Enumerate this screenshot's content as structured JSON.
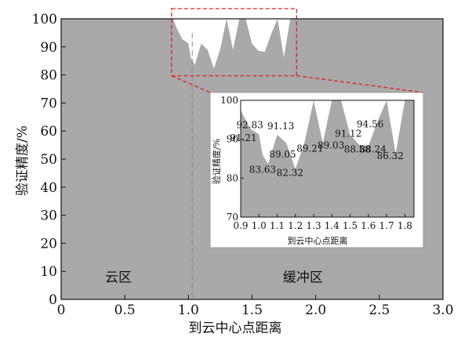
{
  "chart_data": [
    {
      "type": "area",
      "xlabel": "到云中心点距离",
      "ylabel": "验证精度/%",
      "xlim": [
        0,
        3.0
      ],
      "ylim": [
        0,
        100
      ],
      "xticks": [
        "0",
        "0.5",
        "1.0",
        "1.5",
        "2.0",
        "2.5",
        "3.0"
      ],
      "yticks": [
        "0",
        "10",
        "20",
        "30",
        "40",
        "50",
        "60",
        "70",
        "80",
        "90",
        "100"
      ],
      "boundary_x": 1.03,
      "regions": [
        {
          "label": "云区",
          "x": 0.45,
          "y": 8
        },
        {
          "label": "缓冲区",
          "x": 1.9,
          "y": 8
        }
      ],
      "zoom_window": {
        "x": [
          0.88,
          1.85
        ],
        "y": [
          80,
          100
        ]
      },
      "series": [
        {
          "values_x": [
            0.0,
            0.88,
            0.9,
            0.95,
            1.0,
            1.02,
            1.05,
            1.1,
            1.15,
            1.2,
            1.25,
            1.3,
            1.35,
            1.4,
            1.45,
            1.5,
            1.55,
            1.6,
            1.65,
            1.7,
            1.75,
            1.8,
            1.85,
            3.0
          ],
          "values_y": [
            100,
            100,
            97.5,
            92.83,
            91.21,
            86,
            83.63,
            91.13,
            89.05,
            82.32,
            89.21,
            100,
            89.03,
            100,
            100,
            91.12,
            88.58,
            88.24,
            94.56,
            100,
            86.32,
            100,
            100,
            100
          ]
        }
      ]
    },
    {
      "type": "area",
      "xlabel": "到云中心点距离",
      "ylabel": "验证精度/%",
      "xlim": [
        0.9,
        1.85
      ],
      "ylim": [
        70,
        100
      ],
      "xticks": [
        "0.9",
        "1.0",
        "1.1",
        "1.2",
        "1.3",
        "1.4",
        "1.5",
        "1.6",
        "1.7",
        "1.8"
      ],
      "yticks": [
        "70",
        "80",
        "90",
        "100"
      ],
      "series": [
        {
          "values_x": [
            0.9,
            0.95,
            1.0,
            1.02,
            1.05,
            1.1,
            1.15,
            1.2,
            1.25,
            1.3,
            1.35,
            1.4,
            1.45,
            1.5,
            1.55,
            1.6,
            1.65,
            1.7,
            1.75,
            1.8,
            1.85
          ],
          "values_y": [
            97.5,
            92.83,
            91.21,
            86,
            83.63,
            91.13,
            89.05,
            82.32,
            89.21,
            100,
            89.03,
            100,
            100,
            91.12,
            88.58,
            88.24,
            94.56,
            100,
            86.32,
            100,
            100
          ]
        }
      ],
      "data_labels": [
        {
          "text": "92.83",
          "x": 0.95,
          "y": 92.83
        },
        {
          "text": "91.21",
          "x": 0.915,
          "y": 89.5
        },
        {
          "text": "91.13",
          "x": 1.12,
          "y": 92.6
        },
        {
          "text": "89.05",
          "x": 1.13,
          "y": 85.3
        },
        {
          "text": "83.63",
          "x": 1.02,
          "y": 81.4
        },
        {
          "text": "82.32",
          "x": 1.17,
          "y": 80.6
        },
        {
          "text": "89.21",
          "x": 1.28,
          "y": 86.8
        },
        {
          "text": "89.03",
          "x": 1.395,
          "y": 87.6
        },
        {
          "text": "91.12",
          "x": 1.49,
          "y": 90.6
        },
        {
          "text": "88.58",
          "x": 1.54,
          "y": 86.6
        },
        {
          "text": "94.56",
          "x": 1.61,
          "y": 93.1
        },
        {
          "text": "88.24",
          "x": 1.625,
          "y": 86.6
        },
        {
          "text": "86.32",
          "x": 1.72,
          "y": 84.9
        }
      ]
    }
  ]
}
